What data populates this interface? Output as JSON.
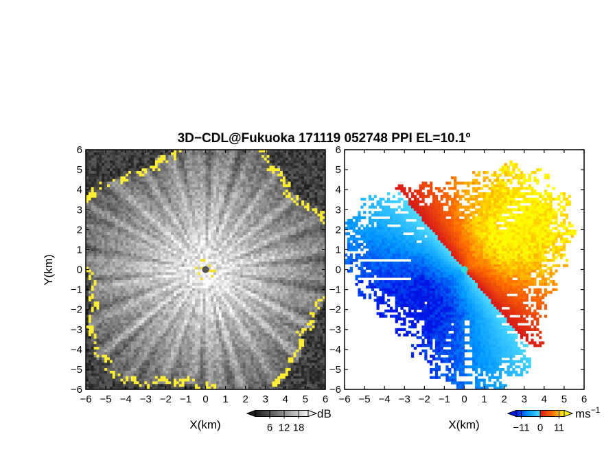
{
  "chart_data": {
    "type": "heatmap",
    "title": "3D−CDL@Fukuoka 171119 052748 PPI EL=10.1º",
    "panels": [
      {
        "name": "snr",
        "xlabel": "X(km)",
        "ylabel": "Y(km)",
        "xlim": [
          -6,
          6
        ],
        "ylim": [
          -6,
          6
        ],
        "xticks": [
          "−6",
          "−5",
          "−4",
          "−3",
          "−2",
          "−1",
          "0",
          "1",
          "2",
          "3",
          "4",
          "5",
          "6"
        ],
        "yticks": [
          "6",
          "5",
          "4",
          "3",
          "2",
          "1",
          "0",
          "−1",
          "−2",
          "−3",
          "−4",
          "−5",
          "−6"
        ],
        "colorbar": {
          "unit": "dB",
          "ticks": [
            "6",
            "12",
            "18"
          ],
          "tick_values": [
            6,
            12,
            18
          ],
          "range": [
            0,
            22
          ],
          "colormap": "grayscale"
        },
        "edge_color": "#ffee00",
        "range_ring_km": [
          5.8,
          6.9
        ]
      },
      {
        "name": "doppler-velocity",
        "xlabel": "X(km)",
        "xlim": [
          -6,
          6
        ],
        "ylim": [
          -6,
          6
        ],
        "xticks": [
          "−6",
          "−5",
          "−4",
          "−3",
          "−2",
          "−1",
          "0",
          "1",
          "2",
          "3",
          "4",
          "5",
          "6"
        ],
        "yticks": [
          "6",
          "5",
          "4",
          "3",
          "2",
          "1",
          "0",
          "−1",
          "−2",
          "−3",
          "−4",
          "−5",
          "−6"
        ],
        "colorbar": {
          "unit": "ms",
          "unit_exponent": "−1",
          "ticks": [
            "−11",
            "0",
            "11"
          ],
          "tick_values": [
            -11,
            0,
            11
          ],
          "range": [
            -14,
            14
          ],
          "colormap": "blue-red-yellow"
        },
        "wind_direction_deg": 40,
        "max_speed_ms": 11
      }
    ]
  }
}
